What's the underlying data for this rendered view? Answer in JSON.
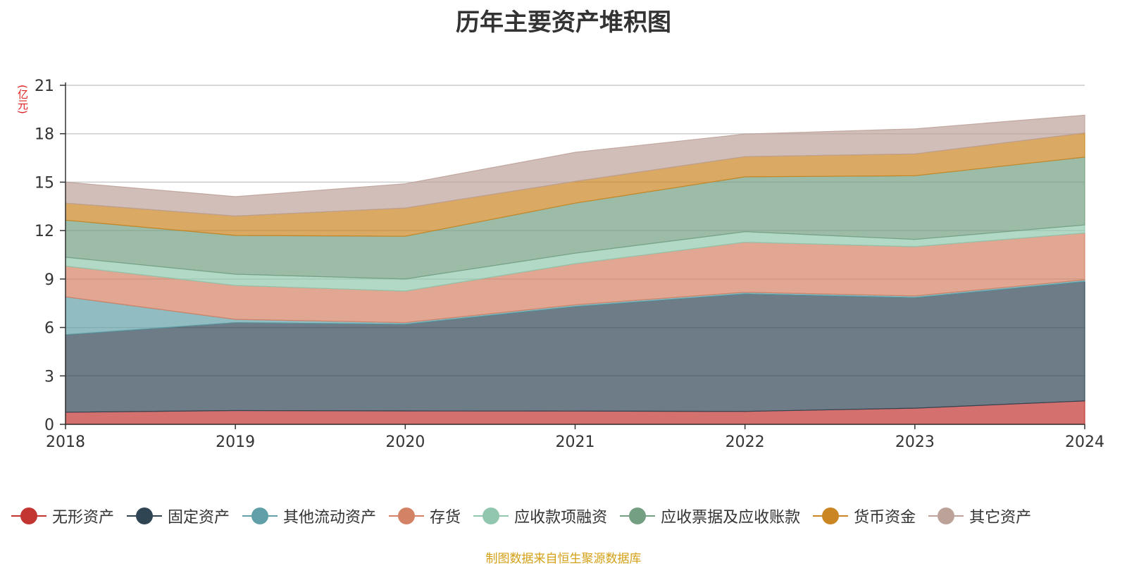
{
  "title": "历年主要资产堆积图",
  "unit": "(亿元)",
  "source": "制图数据来自恒生聚源数据库",
  "chart_data": {
    "type": "area",
    "stacked": true,
    "categories": [
      "2018",
      "2019",
      "2020",
      "2021",
      "2022",
      "2023",
      "2024"
    ],
    "ylim": [
      0,
      21
    ],
    "yticks": [
      "0",
      "3",
      "6",
      "9",
      "12",
      "15",
      "18",
      "21"
    ],
    "grid": true,
    "legend_position": "bottom",
    "series": [
      {
        "name": "无形资产",
        "color": "#c23531",
        "values": [
          0.75,
          0.85,
          0.83,
          0.82,
          0.8,
          1.0,
          1.45
        ]
      },
      {
        "name": "固定资产",
        "color": "#2f4554",
        "values": [
          4.8,
          5.45,
          5.37,
          6.48,
          7.28,
          6.85,
          7.4
        ]
      },
      {
        "name": "其他流动资产",
        "color": "#61a0a8",
        "values": [
          2.35,
          0.2,
          0.1,
          0.1,
          0.1,
          0.1,
          0.1
        ]
      },
      {
        "name": "存货",
        "color": "#d48265",
        "values": [
          1.9,
          2.1,
          1.95,
          2.55,
          3.1,
          3.05,
          2.9
        ]
      },
      {
        "name": "应收款项融资",
        "color": "#91c7ae",
        "values": [
          0.55,
          0.7,
          0.75,
          0.65,
          0.65,
          0.45,
          0.5
        ]
      },
      {
        "name": "应收票据及应收账款",
        "color": "#749f83",
        "values": [
          2.3,
          2.4,
          2.65,
          3.1,
          3.4,
          3.95,
          4.2
        ]
      },
      {
        "name": "货币资金",
        "color": "#ca8622",
        "values": [
          1.05,
          1.2,
          1.75,
          1.35,
          1.25,
          1.35,
          1.5
        ]
      },
      {
        "name": "其它资产",
        "color": "#bda29a",
        "values": [
          1.3,
          1.2,
          1.5,
          1.8,
          1.4,
          1.55,
          1.1
        ]
      }
    ]
  }
}
